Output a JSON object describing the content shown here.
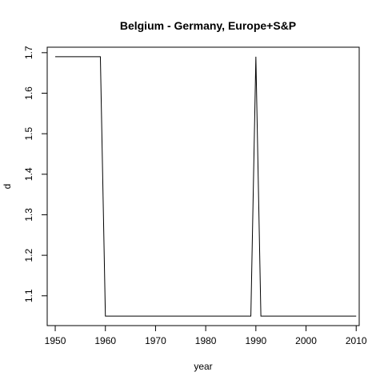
{
  "chart_data": {
    "type": "line",
    "title": "Belgium - Germany, Europe+S&P",
    "xlabel": "year",
    "ylabel": "d",
    "xlim": [
      1948.4,
      2010.6
    ],
    "ylim": [
      1.0265,
      1.7135
    ],
    "x_ticks": [
      1950,
      1960,
      1970,
      1980,
      1990,
      2000,
      2010
    ],
    "y_ticks": [
      1.1,
      1.2,
      1.3,
      1.4,
      1.5,
      1.6,
      1.7
    ],
    "grid": false,
    "series": [
      {
        "color": "#000000",
        "points": [
          {
            "x": 1950,
            "y": 1.69
          },
          {
            "x": 1959,
            "y": 1.69
          },
          {
            "x": 1960,
            "y": 1.05
          },
          {
            "x": 1989,
            "y": 1.05
          },
          {
            "x": 1990,
            "y": 1.69
          },
          {
            "x": 1991,
            "y": 1.05
          },
          {
            "x": 2010,
            "y": 1.05
          }
        ]
      }
    ]
  }
}
